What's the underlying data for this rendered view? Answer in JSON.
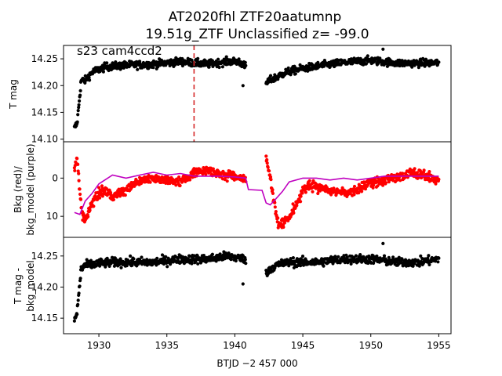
{
  "title_line1": "AT2020fhl  ZTF20aatumnp",
  "title_line2": "19.51g_ZTF Unclassified z= -99.0",
  "colors": {
    "black": "#000000",
    "red": "#ff0000",
    "purple": "#bf00bf",
    "vline": "#d62728"
  },
  "chart_data": [
    {
      "type": "scatter",
      "name": "top",
      "ylabel": "T mag",
      "annotation": "s23 cam4ccd2",
      "ylim": [
        14.275,
        14.095
      ],
      "yticks": [
        14.1,
        14.15,
        14.2,
        14.25
      ],
      "ytick_labels": [
        "14.10",
        "14.15",
        "14.20",
        "14.25"
      ],
      "vline_x": 1937.0,
      "segments": [
        {
          "x": [
            1928.2,
            1928.4,
            1928.7,
            1929.0,
            1929.5,
            1930.5,
            1932.0,
            1934.0,
            1936.0,
            1938.0,
            1939.5,
            1940.3,
            1940.8
          ],
          "y": [
            14.12,
            14.13,
            14.21,
            14.21,
            14.225,
            14.235,
            14.238,
            14.24,
            14.245,
            14.24,
            14.245,
            14.245,
            14.235
          ]
        },
        {
          "x": [
            1942.3,
            1942.6,
            1943.0,
            1943.8,
            1945.0,
            1946.5,
            1948.0,
            1950.0,
            1952.0,
            1953.5,
            1955.0
          ],
          "y": [
            14.205,
            14.21,
            14.215,
            14.225,
            14.232,
            14.238,
            14.243,
            14.247,
            14.242,
            14.242,
            14.243
          ]
        }
      ],
      "extra_points": {
        "x": [
          1940.6,
          1950.9
        ],
        "y": [
          14.2,
          14.268
        ]
      },
      "noise": 0.007
    },
    {
      "type": "scatter",
      "name": "middle",
      "ylabel_lines": [
        "Bkg (red)/",
        "bkg_model (purple)"
      ],
      "ylim": [
        -9.5,
        15.5
      ],
      "yticks": [
        0,
        10
      ],
      "ytick_labels": [
        "0",
        "10"
      ],
      "segments": [
        {
          "x": [
            1928.2,
            1928.4,
            1928.6,
            1928.8,
            1929.0,
            1929.5,
            1930.0,
            1930.5,
            1931.0,
            1932.0,
            1933.0,
            1934.0,
            1935.0,
            1936.0,
            1937.0,
            1938.0,
            1939.0,
            1940.0,
            1940.8
          ],
          "y": [
            -3,
            -5,
            4,
            10,
            11,
            7,
            4,
            3,
            5,
            3,
            1,
            0,
            0.5,
            1,
            -1.5,
            -2,
            -1,
            -0.5,
            0.5
          ]
        },
        {
          "x": [
            1942.3,
            1942.6,
            1942.9,
            1943.2,
            1943.6,
            1944.0,
            1944.5,
            1945.0,
            1945.5,
            1946.0,
            1947.0,
            1948.0,
            1949.0,
            1950.0,
            1951.0,
            1952.0,
            1953.0,
            1954.0,
            1955.0
          ],
          "y": [
            -5,
            0,
            7,
            12,
            12,
            10,
            7,
            3,
            2,
            2.5,
            3,
            4,
            3,
            1.5,
            0.5,
            0,
            -1.5,
            -0.5,
            0.5
          ]
        }
      ],
      "noise": 1.2,
      "model_line": {
        "x": [
          1928.2,
          1928.6,
          1929.0,
          1929.5,
          1930.0,
          1931.0,
          1932.0,
          1933.0,
          1934.0,
          1935.0,
          1936.0,
          1937.0,
          1938.0,
          1939.0,
          1940.0,
          1940.8,
          1941.0,
          1942.0,
          1942.3,
          1942.6,
          1943.0,
          1943.5,
          1944.0,
          1945.0,
          1946.0,
          1947.0,
          1948.0,
          1949.0,
          1950.0,
          1951.0,
          1952.0,
          1953.0,
          1954.0,
          1955.0
        ],
        "y": [
          9,
          9.5,
          6,
          4,
          1.5,
          -0.8,
          0,
          -0.8,
          -1.5,
          -0.8,
          -1.2,
          -0.5,
          -0.5,
          -0.5,
          -0.3,
          0,
          3,
          3.2,
          6.5,
          7,
          5.5,
          3.5,
          1,
          0,
          0,
          0.5,
          0,
          0.5,
          0,
          -0.5,
          -0.5,
          -0.5,
          -0.5,
          -0.5
        ]
      }
    },
    {
      "type": "scatter",
      "name": "bottom",
      "ylabel_lines": [
        "T mag -",
        "bkg_model"
      ],
      "ylim": [
        14.28,
        14.125
      ],
      "yticks": [
        14.15,
        14.2,
        14.25
      ],
      "ytick_labels": [
        "14.15",
        "14.20",
        "14.25"
      ],
      "xlabel": "BTJD −2 457 000",
      "xlim": [
        1927.4,
        1955.9
      ],
      "xticks": [
        1930,
        1935,
        1940,
        1945,
        1950,
        1955
      ],
      "xtick_labels": [
        "1930",
        "1935",
        "1940",
        "1945",
        "1950",
        "1955"
      ],
      "segments": [
        {
          "x": [
            1928.2,
            1928.4,
            1928.7,
            1929.0,
            1930.0,
            1931.0,
            1932.0,
            1934.0,
            1936.0,
            1938.0,
            1939.5,
            1940.8
          ],
          "y": [
            14.145,
            14.16,
            14.23,
            14.235,
            14.238,
            14.24,
            14.24,
            14.24,
            14.245,
            14.245,
            14.25,
            14.245
          ]
        },
        {
          "x": [
            1942.3,
            1942.6,
            1943.0,
            1944.0,
            1946.0,
            1948.0,
            1950.0,
            1952.0,
            1953.5,
            1955.0
          ],
          "y": [
            14.22,
            14.23,
            14.235,
            14.24,
            14.24,
            14.245,
            14.245,
            14.24,
            14.24,
            14.245
          ]
        }
      ],
      "extra_points": {
        "x": [
          1940.6,
          1950.9
        ],
        "y": [
          14.205,
          14.27
        ]
      },
      "noise": 0.007
    }
  ]
}
